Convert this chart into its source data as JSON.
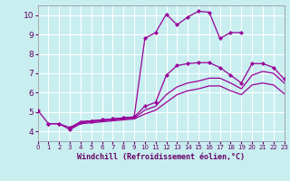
{
  "background_color": "#c8eef0",
  "grid_color": "#ffffff",
  "line_color": "#990099",
  "marker_color": "#990099",
  "xlabel": "Windchill (Refroidissement éolien,°C)",
  "xlim": [
    0,
    23
  ],
  "ylim": [
    3.5,
    10.5
  ],
  "yticks": [
    4,
    5,
    6,
    7,
    8,
    9,
    10
  ],
  "xticks": [
    0,
    1,
    2,
    3,
    4,
    5,
    6,
    7,
    8,
    9,
    10,
    11,
    12,
    13,
    14,
    15,
    16,
    17,
    18,
    19,
    20,
    21,
    22,
    23
  ],
  "curves": [
    {
      "x": [
        0,
        1,
        2,
        3,
        4,
        5,
        6,
        7,
        8,
        9,
        10,
        11,
        12,
        13,
        14,
        15,
        16,
        17,
        18,
        19
      ],
      "y": [
        5.1,
        4.4,
        4.4,
        4.1,
        4.5,
        4.55,
        4.6,
        4.65,
        4.7,
        4.75,
        8.8,
        9.1,
        10.05,
        9.5,
        9.9,
        10.2,
        10.15,
        8.8,
        9.1,
        9.1
      ],
      "with_markers": true
    },
    {
      "x": [
        1,
        2,
        3,
        4,
        5,
        6,
        7,
        8,
        9,
        10,
        11,
        12,
        13,
        14,
        15,
        16,
        17,
        18,
        19,
        20,
        21,
        22,
        23
      ],
      "y": [
        4.4,
        4.4,
        4.2,
        4.5,
        4.55,
        4.6,
        4.65,
        4.7,
        4.75,
        5.3,
        5.5,
        6.9,
        7.4,
        7.5,
        7.55,
        7.55,
        7.3,
        6.9,
        6.5,
        7.5,
        7.5,
        7.3,
        6.7
      ],
      "with_markers": true
    },
    {
      "x": [
        3,
        4,
        5,
        6,
        7,
        8,
        9,
        10,
        11,
        12,
        13,
        14,
        15,
        16,
        17,
        18,
        19,
        20,
        21,
        22,
        23
      ],
      "y": [
        4.2,
        4.45,
        4.5,
        4.55,
        4.6,
        4.65,
        4.7,
        5.1,
        5.3,
        5.9,
        6.3,
        6.5,
        6.6,
        6.75,
        6.75,
        6.5,
        6.2,
        6.9,
        7.1,
        7.0,
        6.5
      ],
      "with_markers": false
    },
    {
      "x": [
        3,
        4,
        5,
        6,
        7,
        8,
        9,
        10,
        11,
        12,
        13,
        14,
        15,
        16,
        17,
        18,
        19,
        20,
        21,
        22,
        23
      ],
      "y": [
        4.1,
        4.4,
        4.45,
        4.5,
        4.55,
        4.6,
        4.65,
        4.9,
        5.1,
        5.5,
        5.9,
        6.1,
        6.2,
        6.35,
        6.35,
        6.1,
        5.9,
        6.4,
        6.5,
        6.4,
        5.95
      ],
      "with_markers": false
    }
  ]
}
